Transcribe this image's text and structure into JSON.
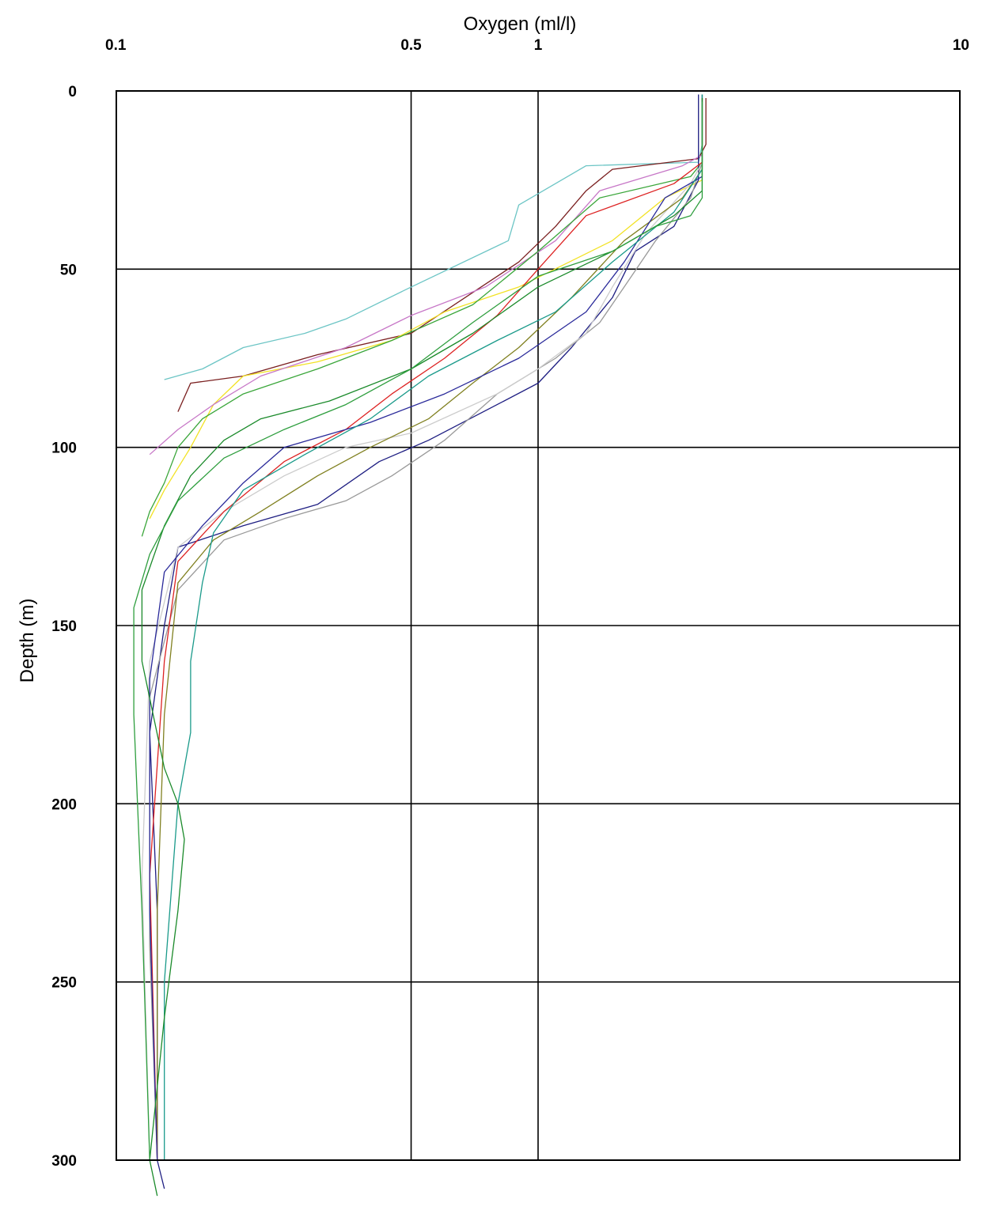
{
  "chart_data": {
    "type": "line",
    "title": "",
    "xlabel": "Oxygen (ml/l)",
    "ylabel": "Depth (m)",
    "x_scale": "log",
    "x_axis_position": "top",
    "y_inverted": true,
    "xlim": [
      0.1,
      10
    ],
    "ylim": [
      0,
      300
    ],
    "x_ticks": [
      0.1,
      0.5,
      1,
      10
    ],
    "x_tick_labels": [
      "0.1",
      "0.5",
      "1",
      "10"
    ],
    "y_ticks": [
      0,
      50,
      100,
      150,
      200,
      250,
      300
    ],
    "y_tick_labels": [
      "0",
      "50",
      "100",
      "150",
      "200",
      "250",
      "300"
    ],
    "grid": true,
    "legend": "none",
    "series": [
      {
        "color": "#6cc5c5",
        "points": [
          [
            2.45,
            1
          ],
          [
            2.45,
            15
          ],
          [
            2.4,
            20
          ],
          [
            1.3,
            21
          ],
          [
            0.9,
            32
          ],
          [
            0.85,
            42
          ],
          [
            0.5,
            55
          ],
          [
            0.35,
            64
          ],
          [
            0.28,
            68
          ],
          [
            0.2,
            72
          ],
          [
            0.16,
            78
          ],
          [
            0.13,
            81
          ]
        ]
      },
      {
        "color": "#7a1f1f",
        "points": [
          [
            2.5,
            2
          ],
          [
            2.5,
            15
          ],
          [
            2.4,
            19
          ],
          [
            1.5,
            22
          ],
          [
            1.3,
            28
          ],
          [
            1.1,
            38
          ],
          [
            0.9,
            48
          ],
          [
            0.5,
            68
          ],
          [
            0.3,
            74
          ],
          [
            0.2,
            80
          ],
          [
            0.15,
            82
          ],
          [
            0.14,
            90
          ]
        ]
      },
      {
        "color": "#f2e224",
        "points": [
          [
            2.45,
            2
          ],
          [
            2.45,
            25
          ],
          [
            2.0,
            30
          ],
          [
            1.5,
            42
          ],
          [
            0.9,
            55
          ],
          [
            0.6,
            62
          ],
          [
            0.45,
            70
          ],
          [
            0.3,
            76
          ],
          [
            0.2,
            80
          ],
          [
            0.17,
            88
          ],
          [
            0.15,
            100
          ],
          [
            0.13,
            112
          ],
          [
            0.12,
            120
          ]
        ]
      },
      {
        "color": "#c777c7",
        "points": [
          [
            2.45,
            3
          ],
          [
            2.45,
            18
          ],
          [
            2.2,
            21
          ],
          [
            1.4,
            28
          ],
          [
            1.1,
            42
          ],
          [
            0.75,
            55
          ],
          [
            0.5,
            63
          ],
          [
            0.35,
            72
          ],
          [
            0.22,
            80
          ],
          [
            0.17,
            88
          ],
          [
            0.14,
            95
          ],
          [
            0.12,
            102
          ]
        ]
      },
      {
        "color": "#3aa63a",
        "points": [
          [
            2.45,
            1
          ],
          [
            2.45,
            20
          ],
          [
            2.3,
            24
          ],
          [
            1.4,
            30
          ],
          [
            1.0,
            45
          ],
          [
            0.7,
            60
          ],
          [
            0.45,
            70
          ],
          [
            0.3,
            78
          ],
          [
            0.2,
            85
          ],
          [
            0.16,
            92
          ],
          [
            0.14,
            100
          ],
          [
            0.13,
            110
          ],
          [
            0.12,
            118
          ],
          [
            0.115,
            125
          ]
        ]
      },
      {
        "color": "#1e1e82",
        "points": [
          [
            2.4,
            1
          ],
          [
            2.4,
            25
          ],
          [
            2.1,
            38
          ],
          [
            1.7,
            45
          ],
          [
            1.5,
            58
          ],
          [
            1.2,
            72
          ],
          [
            1.0,
            82
          ],
          [
            0.8,
            88
          ],
          [
            0.55,
            98
          ],
          [
            0.42,
            104
          ],
          [
            0.3,
            116
          ],
          [
            0.2,
            122
          ],
          [
            0.14,
            128
          ],
          [
            0.13,
            150
          ],
          [
            0.12,
            180
          ],
          [
            0.125,
            230
          ],
          [
            0.125,
            300
          ],
          [
            0.13,
            308
          ]
        ]
      },
      {
        "color": "#999999",
        "points": [
          [
            2.45,
            1
          ],
          [
            2.45,
            20
          ],
          [
            2.3,
            30
          ],
          [
            1.9,
            42
          ],
          [
            1.6,
            55
          ],
          [
            1.4,
            65
          ],
          [
            1.1,
            75
          ],
          [
            0.8,
            85
          ],
          [
            0.6,
            98
          ],
          [
            0.45,
            108
          ],
          [
            0.35,
            115
          ],
          [
            0.25,
            120
          ],
          [
            0.18,
            126
          ],
          [
            0.14,
            140
          ],
          [
            0.12,
            170
          ],
          [
            0.12,
            240
          ],
          [
            0.125,
            300
          ]
        ]
      },
      {
        "color": "#cccccc",
        "points": [
          [
            2.45,
            1
          ],
          [
            2.45,
            20
          ],
          [
            2.3,
            26
          ],
          [
            1.8,
            40
          ],
          [
            1.5,
            55
          ],
          [
            1.3,
            68
          ],
          [
            1.0,
            78
          ],
          [
            0.8,
            85
          ],
          [
            0.5,
            96
          ],
          [
            0.35,
            100
          ],
          [
            0.25,
            108
          ],
          [
            0.18,
            118
          ],
          [
            0.14,
            128
          ],
          [
            0.12,
            160
          ],
          [
            0.115,
            220
          ],
          [
            0.12,
            300
          ]
        ]
      },
      {
        "color": "#808020",
        "points": [
          [
            2.45,
            2
          ],
          [
            2.45,
            22
          ],
          [
            2.2,
            30
          ],
          [
            1.6,
            42
          ],
          [
            1.2,
            58
          ],
          [
            0.9,
            72
          ],
          [
            0.7,
            82
          ],
          [
            0.55,
            92
          ],
          [
            0.4,
            100
          ],
          [
            0.3,
            108
          ],
          [
            0.22,
            118
          ],
          [
            0.17,
            126
          ],
          [
            0.14,
            138
          ],
          [
            0.13,
            175
          ],
          [
            0.125,
            230
          ],
          [
            0.125,
            300
          ]
        ]
      },
      {
        "color": "#dd2222",
        "points": [
          [
            2.45,
            2
          ],
          [
            2.45,
            20
          ],
          [
            2.1,
            26
          ],
          [
            1.3,
            35
          ],
          [
            1.0,
            50
          ],
          [
            0.8,
            63
          ],
          [
            0.6,
            75
          ],
          [
            0.45,
            85
          ],
          [
            0.35,
            95
          ],
          [
            0.25,
            104
          ],
          [
            0.18,
            118
          ],
          [
            0.14,
            132
          ],
          [
            0.13,
            160
          ],
          [
            0.12,
            220
          ],
          [
            0.125,
            300
          ]
        ]
      },
      {
        "color": "#2a2a9a",
        "points": [
          [
            2.45,
            1
          ],
          [
            2.45,
            24
          ],
          [
            2.0,
            30
          ],
          [
            1.6,
            48
          ],
          [
            1.3,
            62
          ],
          [
            0.9,
            75
          ],
          [
            0.6,
            85
          ],
          [
            0.4,
            93
          ],
          [
            0.25,
            100
          ],
          [
            0.2,
            110
          ],
          [
            0.16,
            122
          ],
          [
            0.13,
            135
          ],
          [
            0.12,
            165
          ],
          [
            0.12,
            230
          ],
          [
            0.125,
            300
          ]
        ]
      },
      {
        "color": "#1a9a8a",
        "points": [
          [
            2.45,
            1
          ],
          [
            2.45,
            22
          ],
          [
            2.1,
            34
          ],
          [
            1.5,
            48
          ],
          [
            1.1,
            62
          ],
          [
            0.8,
            70
          ],
          [
            0.55,
            80
          ],
          [
            0.4,
            92
          ],
          [
            0.28,
            102
          ],
          [
            0.2,
            112
          ],
          [
            0.17,
            124
          ],
          [
            0.16,
            138
          ],
          [
            0.15,
            160
          ],
          [
            0.15,
            180
          ],
          [
            0.14,
            200
          ],
          [
            0.13,
            250
          ],
          [
            0.13,
            300
          ]
        ]
      },
      {
        "color": "#1a8a2a",
        "points": [
          [
            2.45,
            2
          ],
          [
            2.45,
            28
          ],
          [
            2.1,
            35
          ],
          [
            1.5,
            45
          ],
          [
            1.0,
            55
          ],
          [
            0.7,
            68
          ],
          [
            0.5,
            78
          ],
          [
            0.32,
            87
          ],
          [
            0.22,
            92
          ],
          [
            0.18,
            98
          ],
          [
            0.15,
            108
          ],
          [
            0.13,
            122
          ],
          [
            0.115,
            140
          ],
          [
            0.115,
            160
          ],
          [
            0.13,
            190
          ],
          [
            0.14,
            200
          ],
          [
            0.145,
            210
          ],
          [
            0.14,
            230
          ],
          [
            0.13,
            260
          ],
          [
            0.12,
            300
          ],
          [
            0.125,
            310
          ]
        ]
      },
      {
        "color": "#2e9e3e",
        "points": [
          [
            2.45,
            3
          ],
          [
            2.45,
            30
          ],
          [
            2.3,
            35
          ],
          [
            1.9,
            38
          ],
          [
            1.5,
            45
          ],
          [
            1.0,
            52
          ],
          [
            0.7,
            65
          ],
          [
            0.5,
            78
          ],
          [
            0.35,
            88
          ],
          [
            0.25,
            95
          ],
          [
            0.18,
            103
          ],
          [
            0.14,
            115
          ],
          [
            0.12,
            130
          ],
          [
            0.11,
            145
          ],
          [
            0.11,
            175
          ],
          [
            0.115,
            230
          ],
          [
            0.12,
            300
          ]
        ]
      }
    ]
  }
}
